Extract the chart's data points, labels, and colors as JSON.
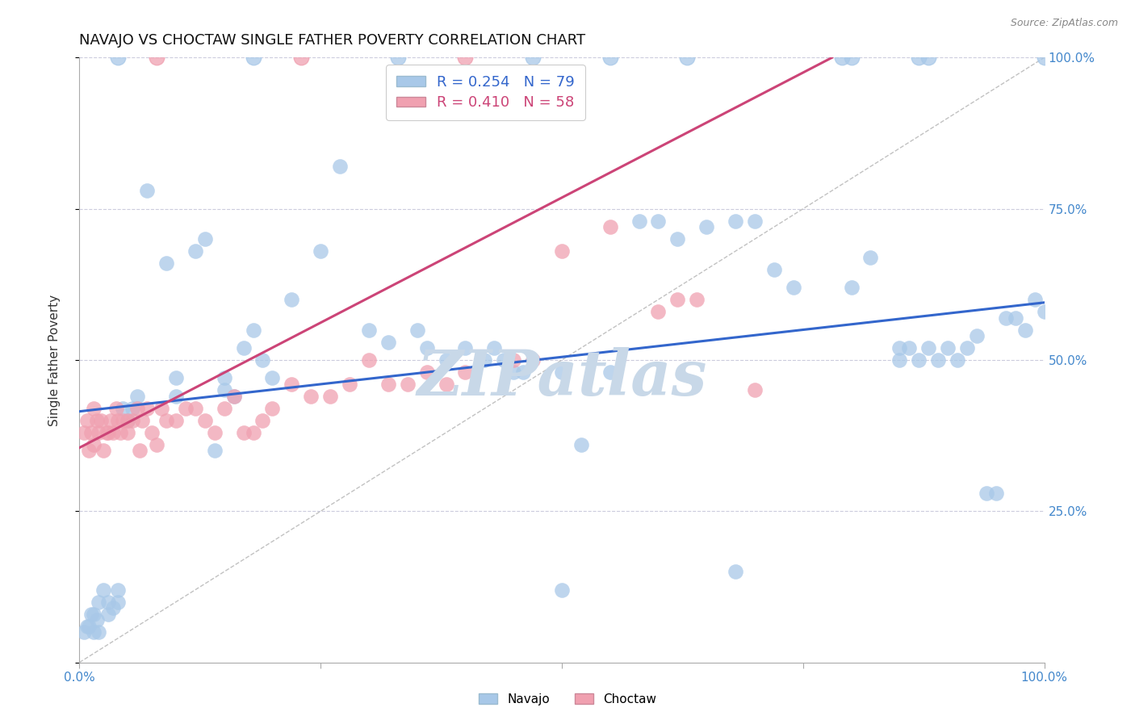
{
  "title": "NAVAJO VS CHOCTAW SINGLE FATHER POVERTY CORRELATION CHART",
  "source_text": "Source: ZipAtlas.com",
  "ylabel": "Single Father Poverty",
  "xlim": [
    0.0,
    1.0
  ],
  "ylim": [
    0.0,
    1.0
  ],
  "navajo_color": "#a8c8e8",
  "navajo_edge_color": "#7aaacc",
  "choctaw_color": "#f0a0b0",
  "choctaw_edge_color": "#cc7788",
  "navajo_line_color": "#3366cc",
  "choctaw_line_color": "#cc4477",
  "reference_line_color": "#bbbbbb",
  "watermark_text": "ZIPatlas",
  "watermark_color": "#c8d8e8",
  "background_color": "#ffffff",
  "grid_color": "#ccccdd",
  "title_fontsize": 13,
  "legend_label_navajo": "R = 0.254   N = 79",
  "legend_label_choctaw": "R = 0.410   N = 58",
  "legend_color_navajo": "#3366cc",
  "legend_color_choctaw": "#cc4477",
  "navajo_trend_x": [
    0.0,
    1.0
  ],
  "navajo_trend_y": [
    0.415,
    0.595
  ],
  "choctaw_trend_x": [
    0.0,
    0.78
  ],
  "choctaw_trend_y": [
    0.355,
    1.0
  ],
  "navajo_points": [
    [
      0.005,
      0.05
    ],
    [
      0.008,
      0.06
    ],
    [
      0.01,
      0.06
    ],
    [
      0.012,
      0.08
    ],
    [
      0.015,
      0.05
    ],
    [
      0.015,
      0.08
    ],
    [
      0.018,
      0.07
    ],
    [
      0.02,
      0.05
    ],
    [
      0.02,
      0.1
    ],
    [
      0.025,
      0.12
    ],
    [
      0.03,
      0.08
    ],
    [
      0.03,
      0.1
    ],
    [
      0.035,
      0.09
    ],
    [
      0.04,
      0.1
    ],
    [
      0.04,
      0.12
    ],
    [
      0.045,
      0.42
    ],
    [
      0.05,
      0.4
    ],
    [
      0.055,
      0.42
    ],
    [
      0.06,
      0.44
    ],
    [
      0.07,
      0.78
    ],
    [
      0.09,
      0.66
    ],
    [
      0.1,
      0.44
    ],
    [
      0.1,
      0.47
    ],
    [
      0.12,
      0.68
    ],
    [
      0.13,
      0.7
    ],
    [
      0.14,
      0.35
    ],
    [
      0.15,
      0.45
    ],
    [
      0.15,
      0.47
    ],
    [
      0.16,
      0.44
    ],
    [
      0.17,
      0.52
    ],
    [
      0.18,
      0.55
    ],
    [
      0.19,
      0.5
    ],
    [
      0.2,
      0.47
    ],
    [
      0.22,
      0.6
    ],
    [
      0.25,
      0.68
    ],
    [
      0.27,
      0.82
    ],
    [
      0.3,
      0.55
    ],
    [
      0.32,
      0.53
    ],
    [
      0.35,
      0.55
    ],
    [
      0.36,
      0.52
    ],
    [
      0.38,
      0.5
    ],
    [
      0.4,
      0.52
    ],
    [
      0.42,
      0.5
    ],
    [
      0.43,
      0.52
    ],
    [
      0.44,
      0.5
    ],
    [
      0.45,
      0.48
    ],
    [
      0.46,
      0.48
    ],
    [
      0.5,
      0.48
    ],
    [
      0.52,
      0.36
    ],
    [
      0.55,
      0.48
    ],
    [
      0.58,
      0.73
    ],
    [
      0.6,
      0.73
    ],
    [
      0.62,
      0.7
    ],
    [
      0.65,
      0.72
    ],
    [
      0.68,
      0.73
    ],
    [
      0.7,
      0.73
    ],
    [
      0.72,
      0.65
    ],
    [
      0.74,
      0.62
    ],
    [
      0.8,
      0.62
    ],
    [
      0.82,
      0.67
    ],
    [
      0.85,
      0.5
    ],
    [
      0.85,
      0.52
    ],
    [
      0.86,
      0.52
    ],
    [
      0.87,
      0.5
    ],
    [
      0.88,
      0.52
    ],
    [
      0.89,
      0.5
    ],
    [
      0.9,
      0.52
    ],
    [
      0.91,
      0.5
    ],
    [
      0.92,
      0.52
    ],
    [
      0.93,
      0.54
    ],
    [
      0.94,
      0.28
    ],
    [
      0.95,
      0.28
    ],
    [
      0.96,
      0.57
    ],
    [
      0.97,
      0.57
    ],
    [
      0.98,
      0.55
    ],
    [
      0.99,
      0.6
    ],
    [
      1.0,
      0.58
    ],
    [
      0.5,
      0.12
    ],
    [
      0.68,
      0.15
    ]
  ],
  "choctaw_points": [
    [
      0.005,
      0.38
    ],
    [
      0.008,
      0.4
    ],
    [
      0.01,
      0.35
    ],
    [
      0.012,
      0.38
    ],
    [
      0.015,
      0.36
    ],
    [
      0.015,
      0.42
    ],
    [
      0.018,
      0.4
    ],
    [
      0.02,
      0.38
    ],
    [
      0.022,
      0.4
    ],
    [
      0.025,
      0.35
    ],
    [
      0.028,
      0.38
    ],
    [
      0.03,
      0.38
    ],
    [
      0.032,
      0.4
    ],
    [
      0.035,
      0.38
    ],
    [
      0.038,
      0.42
    ],
    [
      0.04,
      0.4
    ],
    [
      0.042,
      0.38
    ],
    [
      0.045,
      0.4
    ],
    [
      0.05,
      0.38
    ],
    [
      0.05,
      0.4
    ],
    [
      0.055,
      0.4
    ],
    [
      0.06,
      0.42
    ],
    [
      0.062,
      0.35
    ],
    [
      0.065,
      0.4
    ],
    [
      0.07,
      0.42
    ],
    [
      0.075,
      0.38
    ],
    [
      0.08,
      0.36
    ],
    [
      0.085,
      0.42
    ],
    [
      0.09,
      0.4
    ],
    [
      0.1,
      0.4
    ],
    [
      0.11,
      0.42
    ],
    [
      0.12,
      0.42
    ],
    [
      0.13,
      0.4
    ],
    [
      0.14,
      0.38
    ],
    [
      0.15,
      0.42
    ],
    [
      0.16,
      0.44
    ],
    [
      0.17,
      0.38
    ],
    [
      0.18,
      0.38
    ],
    [
      0.19,
      0.4
    ],
    [
      0.2,
      0.42
    ],
    [
      0.22,
      0.46
    ],
    [
      0.24,
      0.44
    ],
    [
      0.26,
      0.44
    ],
    [
      0.28,
      0.46
    ],
    [
      0.3,
      0.5
    ],
    [
      0.32,
      0.46
    ],
    [
      0.34,
      0.46
    ],
    [
      0.36,
      0.48
    ],
    [
      0.38,
      0.46
    ],
    [
      0.4,
      0.48
    ],
    [
      0.45,
      0.5
    ],
    [
      0.47,
      0.5
    ],
    [
      0.5,
      0.68
    ],
    [
      0.55,
      0.72
    ],
    [
      0.6,
      0.58
    ],
    [
      0.62,
      0.6
    ],
    [
      0.64,
      0.6
    ],
    [
      0.7,
      0.45
    ]
  ]
}
